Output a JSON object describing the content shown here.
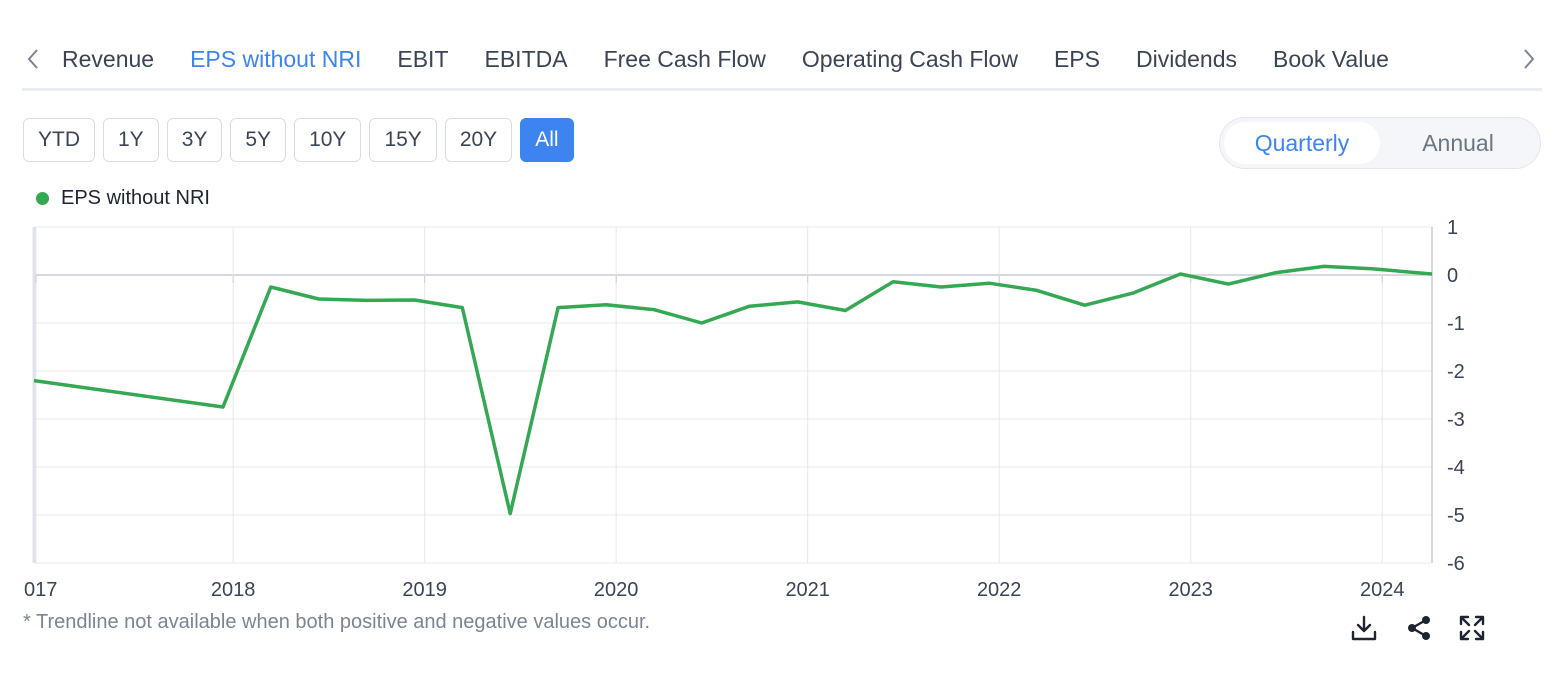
{
  "tabs": [
    "Revenue",
    "EPS without NRI",
    "EBIT",
    "EBITDA",
    "Free Cash Flow",
    "Operating Cash Flow",
    "EPS",
    "Dividends",
    "Book Value"
  ],
  "active_tab": "EPS without NRI",
  "ranges": [
    "YTD",
    "1Y",
    "3Y",
    "5Y",
    "10Y",
    "15Y",
    "20Y",
    "All"
  ],
  "active_range": "All",
  "period_toggle": {
    "quarterly": "Quarterly",
    "annual": "Annual",
    "active": "Quarterly"
  },
  "footnote": "* Trendline not available when both positive and negative values occur.",
  "icons": {
    "download": "download-icon",
    "share": "share-icon",
    "fullscreen": "expand-icon",
    "prev": "chevron-left-icon",
    "next": "chevron-right-icon"
  },
  "colors": {
    "accent": "#3d84f0",
    "series": "#34a853"
  },
  "chart_data": {
    "type": "line",
    "series": [
      {
        "name": "EPS without NRI",
        "x": [
          "2016-12",
          "2017-12",
          "2018-03",
          "2018-06",
          "2018-09",
          "2018-12",
          "2019-03",
          "2019-06",
          "2019-09",
          "2019-12",
          "2020-03",
          "2020-06",
          "2020-09",
          "2020-12",
          "2021-03",
          "2021-06",
          "2021-09",
          "2021-12",
          "2022-03",
          "2022-06",
          "2022-09",
          "2022-12",
          "2023-03",
          "2023-06",
          "2023-09",
          "2023-12",
          "2024-03"
        ],
        "values": [
          -2.2,
          -2.75,
          -0.25,
          -0.5,
          -0.53,
          -0.52,
          -0.68,
          -4.97,
          -0.68,
          -0.62,
          -0.72,
          -1.0,
          -0.65,
          -0.56,
          -0.74,
          -0.14,
          -0.25,
          -0.17,
          -0.32,
          -0.63,
          -0.38,
          0.02,
          -0.19,
          0.05,
          0.18,
          0.13,
          0.02
        ]
      }
    ],
    "xticks": [
      "017",
      "2018",
      "2019",
      "2020",
      "2021",
      "2022",
      "2023",
      "2024"
    ],
    "yticks": [
      1,
      0,
      -1,
      -2,
      -3,
      -4,
      -5,
      -6
    ],
    "ylim": [
      -6,
      1
    ],
    "grid": true,
    "legend_position": "top-left",
    "title": "",
    "xlabel": "",
    "ylabel": ""
  }
}
